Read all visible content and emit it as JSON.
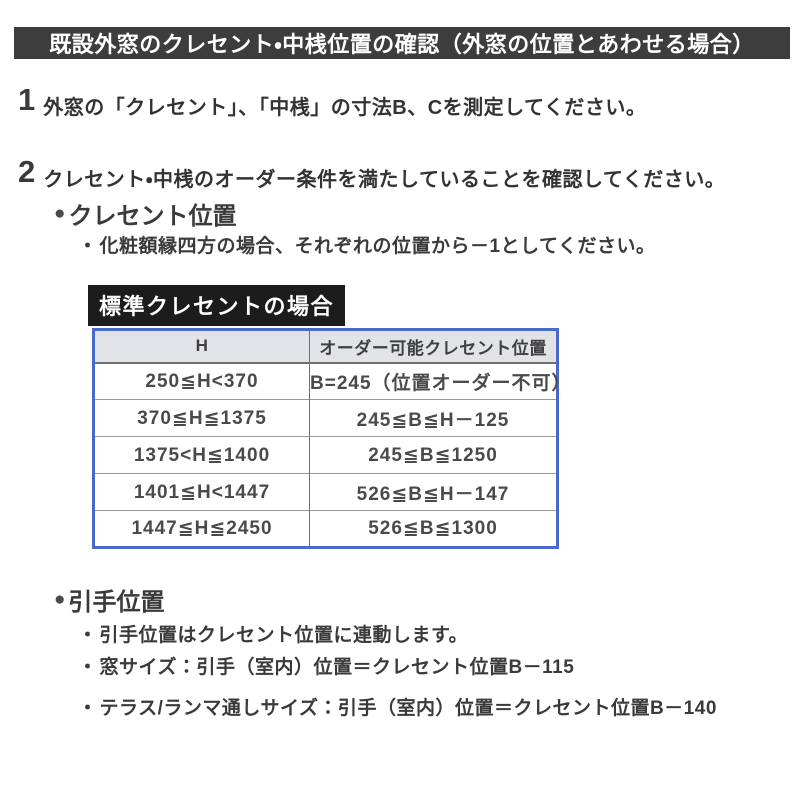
{
  "ui": {
    "circle_bullet": "●",
    "dot_bullet": "・"
  },
  "colors": {
    "title_bar_bg": "#3d3d3d",
    "black_box_bg": "#1c1c1c",
    "table_border": "#4a69cf",
    "table_header_bg": "#e2e3e6",
    "body_text": "#3a3a3a"
  },
  "title_bar": "既設外窓のクレセント・中桟位置の確認（外窓の位置とあわせる場合）",
  "steps": [
    {
      "number": "1",
      "text": "外窓の「クレセント」、「中桟」の寸法B、Cを測定してください。"
    },
    {
      "number": "2",
      "text": "クレセント・中桟のオーダー条件を満たしていることを確認してください。"
    }
  ],
  "crescent_section": {
    "heading": "クレセント位置",
    "bullets": [
      "化粧額縁四方の場合、それぞれの位置から－1としてください。"
    ]
  },
  "table_section": {
    "title": "標準クレセントの場合",
    "columns": [
      "H",
      "オーダー可能クレセント位置"
    ],
    "rows": [
      [
        "250≦H<370",
        "B=245（位置オーダー不可）"
      ],
      [
        "370≦H≦1375",
        "245≦B≦H－125"
      ],
      [
        "1375<H≦1400",
        "245≦B≦1250"
      ],
      [
        "1401≦H<1447",
        "526≦B≦H－147"
      ],
      [
        "1447≦H≦2450",
        "526≦B≦1300"
      ]
    ]
  },
  "handle_section": {
    "heading": "引手位置",
    "bullets": [
      "引手位置はクレセント位置に連動します。",
      "窓サイズ：引手（室内）位置＝クレセント位置B－115",
      "テラス/ランマ通しサイズ：引手（室内）位置＝クレセント位置B－140"
    ]
  }
}
